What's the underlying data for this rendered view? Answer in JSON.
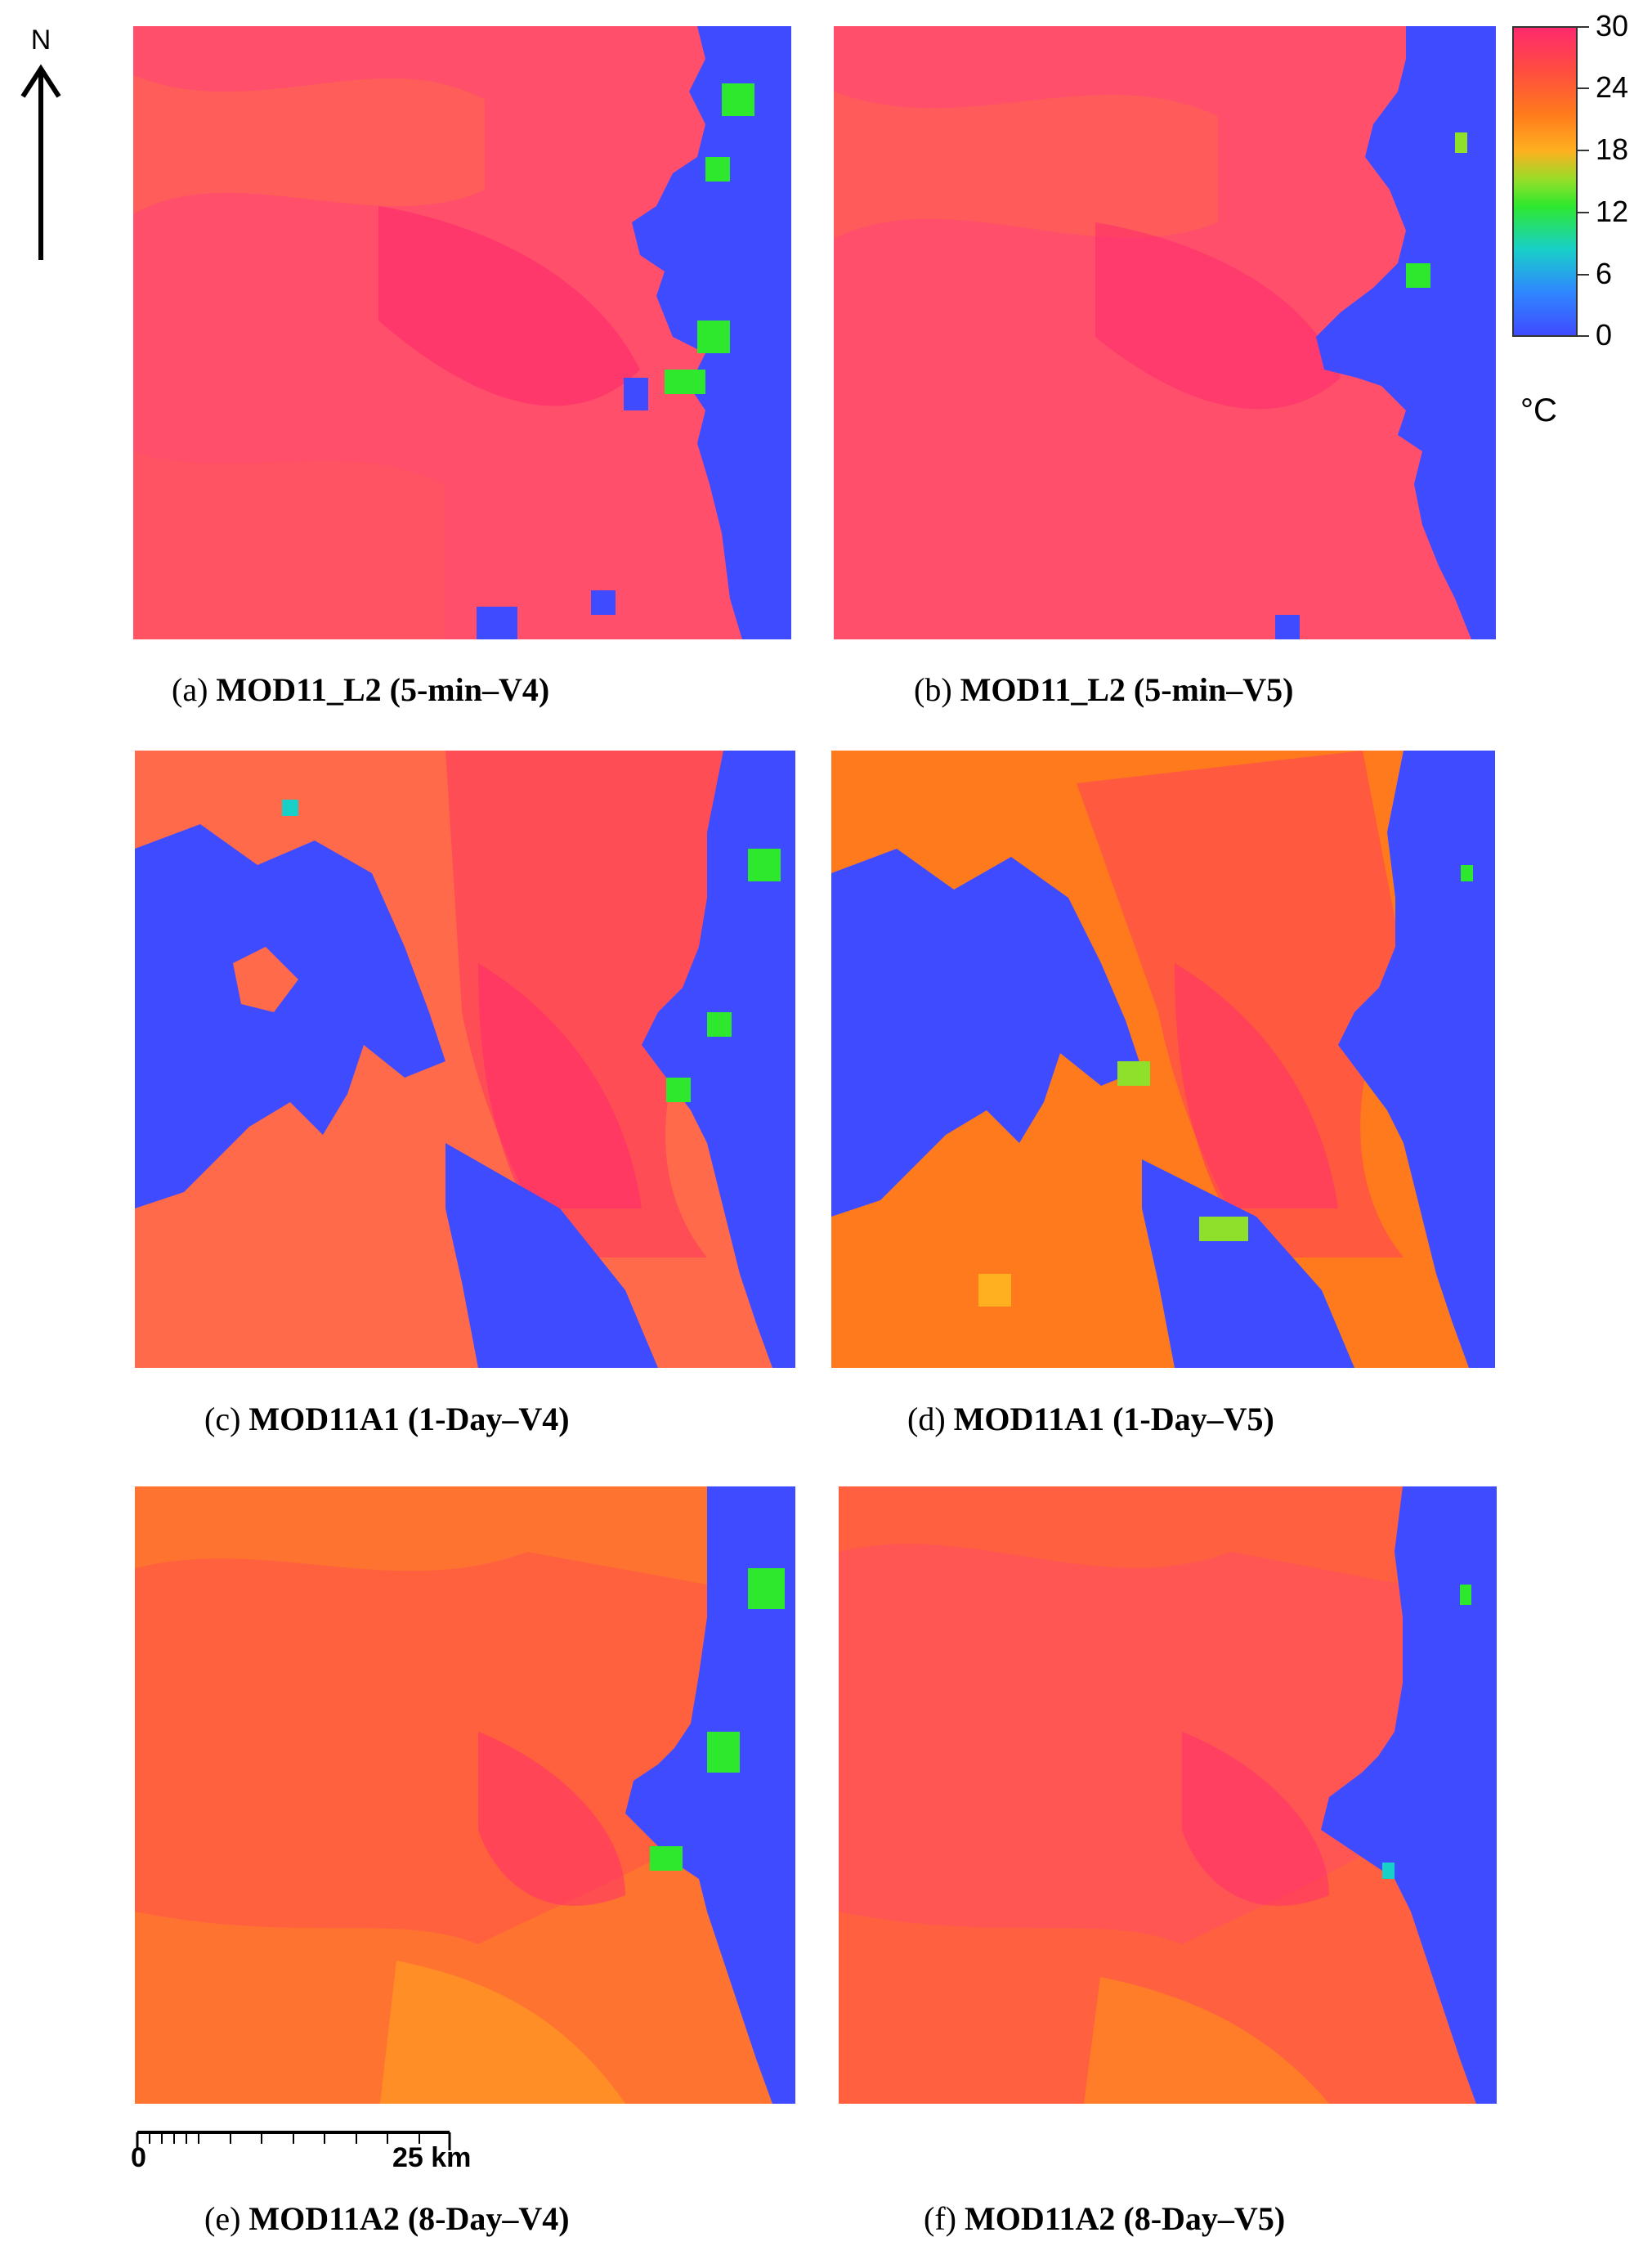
{
  "north_arrow": {
    "label": "N"
  },
  "panels": [
    {
      "id": "a",
      "tag": "(a)",
      "title": "MOD11_L2 (5-min–V4)"
    },
    {
      "id": "b",
      "tag": "(b)",
      "title": "MOD11_L2 (5-min–V5)"
    },
    {
      "id": "c",
      "tag": "(c)",
      "title": "MOD11A1 (1-Day–V4)"
    },
    {
      "id": "d",
      "tag": "(d)",
      "title": "MOD11A1 (1-Day–V5)"
    },
    {
      "id": "e",
      "tag": "(e)",
      "title": "MOD11A2 (8-Day–V4)"
    },
    {
      "id": "f",
      "tag": "(f)",
      "title": "MOD11A2 (8-Day–V5)"
    }
  ],
  "legend": {
    "labels": [
      "30",
      "24",
      "18",
      "12",
      "6",
      "0"
    ],
    "unit": "°C",
    "colors": {
      "water": "#3f4bff",
      "hot": "#ff2a6e",
      "warm": "#ff4d40",
      "mild": "#ff7a1c",
      "cool": "#2ee82e"
    }
  },
  "scale_bar": {
    "start_label": "0",
    "end_label": "25 km"
  }
}
